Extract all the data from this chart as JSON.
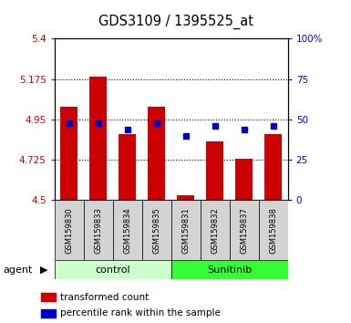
{
  "title": "GDS3109 / 1395525_at",
  "samples": [
    "GSM159830",
    "GSM159833",
    "GSM159834",
    "GSM159835",
    "GSM159831",
    "GSM159832",
    "GSM159837",
    "GSM159838"
  ],
  "groups": [
    "control",
    "control",
    "control",
    "control",
    "Sunitinib",
    "Sunitinib",
    "Sunitinib",
    "Sunitinib"
  ],
  "red_values": [
    5.02,
    5.19,
    4.87,
    5.02,
    4.53,
    4.83,
    4.73,
    4.87
  ],
  "blue_values_pct": [
    48,
    48,
    44,
    48,
    40,
    46,
    44,
    46
  ],
  "ylim_left": [
    4.5,
    5.4
  ],
  "ylim_right": [
    0,
    100
  ],
  "yticks_left": [
    4.5,
    4.725,
    4.95,
    5.175,
    5.4
  ],
  "ytick_labels_left": [
    "4.5",
    "4.725",
    "4.95",
    "5.175",
    "5.4"
  ],
  "yticks_right": [
    0,
    25,
    50,
    75,
    100
  ],
  "ytick_labels_right": [
    "0",
    "25",
    "50",
    "75",
    "100%"
  ],
  "hlines": [
    4.725,
    4.95,
    5.175
  ],
  "bar_color": "#cc0000",
  "dot_color": "#0000cc",
  "bar_width": 0.6,
  "base_value": 4.5,
  "control_color": "#ccffcc",
  "sunitinib_color": "#33ff33",
  "left_tick_color": "#cc0000",
  "right_tick_color": "#0000cc",
  "agent_label": "agent",
  "legend_red": "transformed count",
  "legend_blue": "percentile rank within the sample",
  "bgcolor": "white",
  "plot_bgcolor": "white",
  "grid_linestyle": "dotted",
  "grid_color": "black",
  "sample_bg_color": "#d3d3d3"
}
